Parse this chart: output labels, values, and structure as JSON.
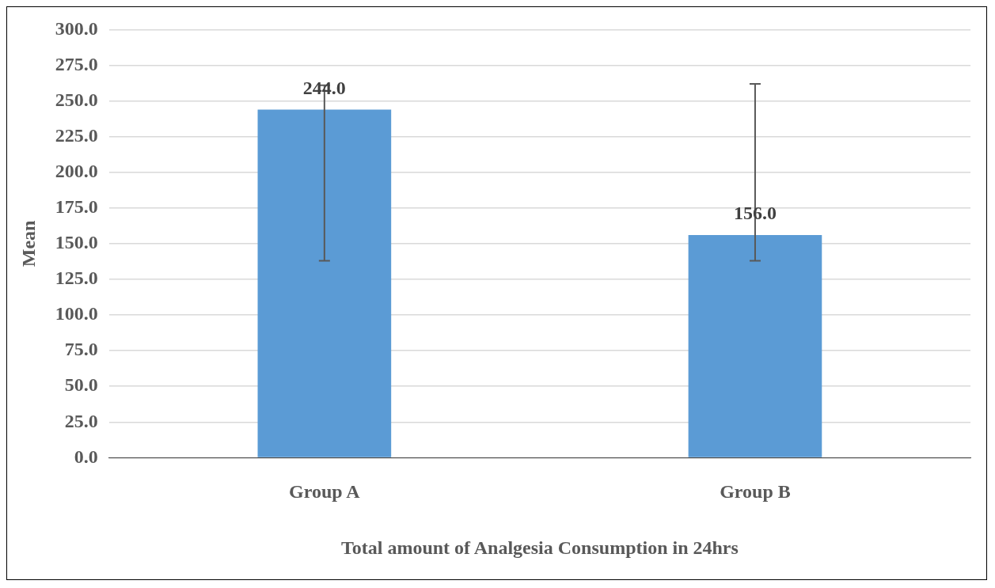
{
  "chart_data": {
    "type": "bar",
    "xlabel": "Total amount of Analgesia Consumption in 24hrs",
    "ylabel": "Mean",
    "categories": [
      "Group A",
      "Group B"
    ],
    "values": [
      244.0,
      156.0
    ],
    "color": "#5b9bd5",
    "errors": [
      [
        138,
        261
      ],
      [
        138,
        262
      ]
    ],
    "value_labels": [
      "244.0",
      "156.0"
    ],
    "ylim": [
      0,
      300
    ],
    "yticks": [
      {
        "value": 0,
        "label": "0.0"
      },
      {
        "value": 25,
        "label": "25.0"
      },
      {
        "value": 50,
        "label": "50.0"
      },
      {
        "value": 75,
        "label": "75.0"
      },
      {
        "value": 100,
        "label": "100.0"
      },
      {
        "value": 125,
        "label": "125.0"
      },
      {
        "value": 150,
        "label": "150.0"
      },
      {
        "value": 175,
        "label": "175.0"
      },
      {
        "value": 200,
        "label": "200.0"
      },
      {
        "value": 225,
        "label": "225.0"
      },
      {
        "value": 250,
        "label": "250.0"
      },
      {
        "value": 275,
        "label": "275.0"
      },
      {
        "value": 300,
        "label": "300.0"
      }
    ],
    "grid": "y",
    "legend": false
  }
}
